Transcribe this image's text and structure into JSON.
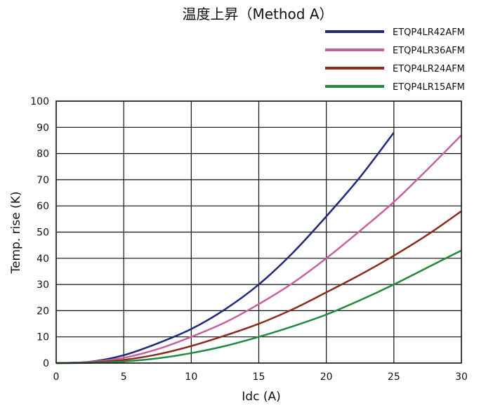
{
  "chart_data": {
    "type": "line",
    "title": "温度上昇（Method A）",
    "xlabel": "Idc (A)",
    "ylabel": "Temp. rise (K)",
    "xlim": [
      0,
      30
    ],
    "ylim": [
      0,
      100
    ],
    "xticks": [
      0,
      5,
      10,
      15,
      20,
      25,
      30
    ],
    "yticks": [
      0,
      10,
      20,
      30,
      40,
      50,
      60,
      70,
      80,
      90,
      100
    ],
    "grid": true,
    "legend_position": "top-right",
    "series": [
      {
        "name": "ETQP4LR42AFM",
        "color": "#1f2a7a",
        "x": [
          0,
          2.5,
          5,
          7.5,
          10,
          12.5,
          15,
          17.5,
          20,
          22.5,
          25
        ],
        "y": [
          0,
          0.5,
          3,
          7.5,
          13,
          20.5,
          30,
          42,
          56,
          71,
          88
        ]
      },
      {
        "name": "ETQP4LR36AFM",
        "color": "#c8609e",
        "x": [
          0,
          2.5,
          5,
          7.5,
          10,
          12.5,
          15,
          17.5,
          20,
          22.5,
          25,
          27.5,
          30
        ],
        "y": [
          0,
          0.4,
          2,
          5.3,
          10,
          15.5,
          22.5,
          30.5,
          40,
          50.5,
          61.5,
          74,
          87
        ]
      },
      {
        "name": "ETQP4LR24AFM",
        "color": "#8b2c1e",
        "x": [
          0,
          2.5,
          5,
          7.5,
          10,
          12.5,
          15,
          17.5,
          20,
          22.5,
          25,
          27.5,
          30
        ],
        "y": [
          0,
          0.2,
          1.2,
          3.3,
          6.5,
          10.5,
          15,
          20.5,
          27,
          33.7,
          41,
          49,
          58
        ]
      },
      {
        "name": "ETQP4LR15AFM",
        "color": "#218a3c",
        "x": [
          0,
          2.5,
          5,
          7.5,
          10,
          12.5,
          15,
          17.5,
          20,
          22.5,
          25,
          27.5,
          30
        ],
        "y": [
          0,
          0.1,
          0.6,
          1.8,
          3.8,
          6.5,
          10,
          14,
          18.5,
          24,
          30,
          36.5,
          43
        ]
      }
    ]
  }
}
